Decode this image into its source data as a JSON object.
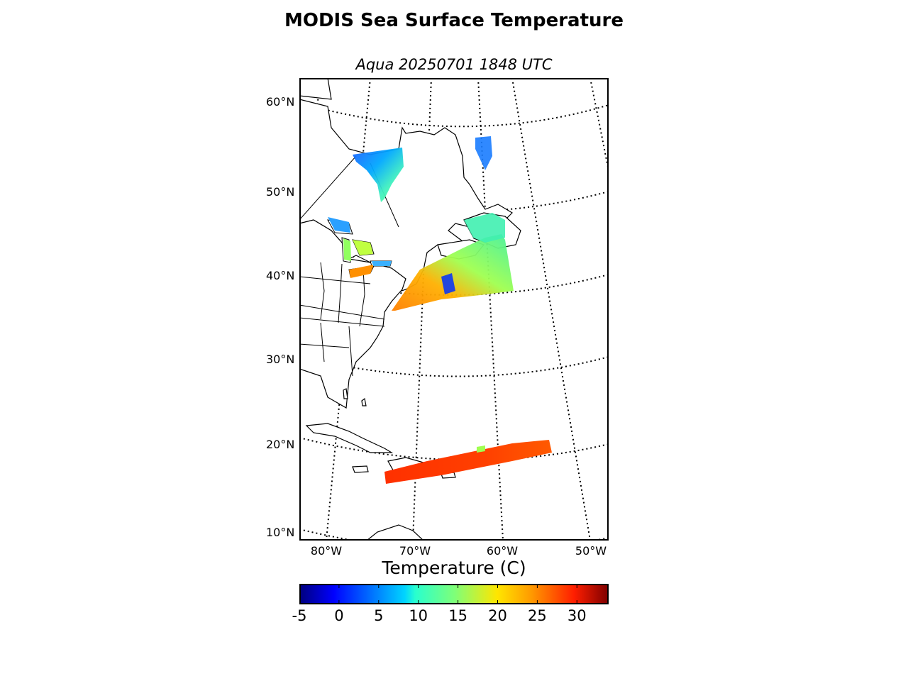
{
  "title": "MODIS Sea Surface Temperature",
  "subtitle": "Aqua 20250701 1848 UTC",
  "map": {
    "lat_labels": [
      "60°N",
      "50°N",
      "40°N",
      "30°N",
      "20°N",
      "10°N"
    ],
    "lon_labels": [
      "80°W",
      "70°W",
      "60°W",
      "50°W"
    ],
    "colors": {
      "frame": "#000000",
      "coast": "#000000",
      "grid": "#000000",
      "land": "#ffffff"
    }
  },
  "colorbar": {
    "label": "Temperature (C)",
    "ticks": [
      "-5",
      "0",
      "5",
      "10",
      "15",
      "20",
      "25",
      "30"
    ],
    "range": [
      -5,
      34
    ],
    "colormap": "jet"
  }
}
